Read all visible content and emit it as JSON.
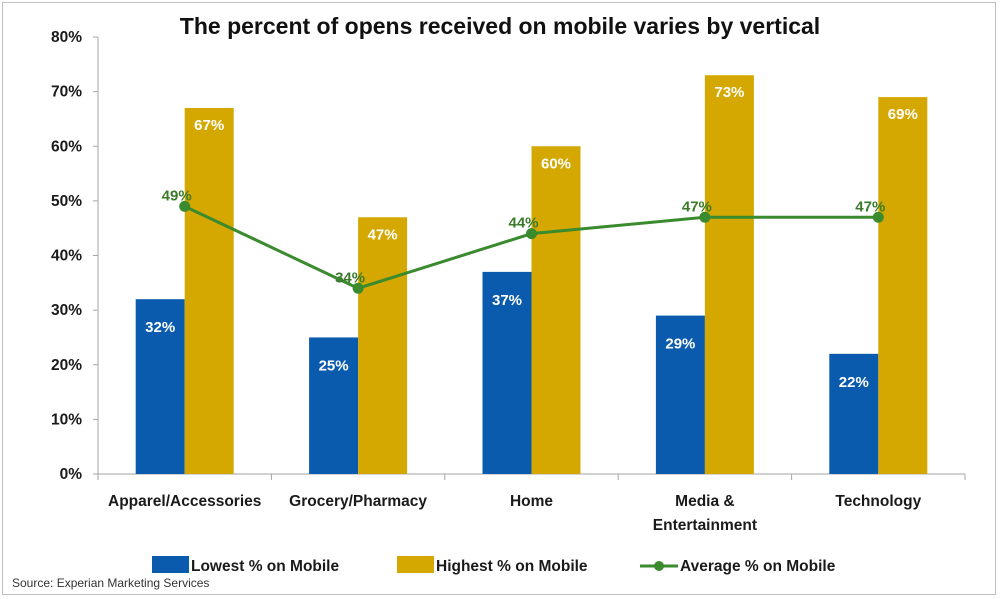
{
  "chart_data": {
    "type": "bar",
    "title": "The percent of opens received on mobile varies by vertical",
    "xlabel": "",
    "ylabel": "",
    "ylim": [
      0,
      80
    ],
    "yticks": [
      "0%",
      "10%",
      "20%",
      "30%",
      "40%",
      "50%",
      "60%",
      "70%",
      "80%"
    ],
    "ytick_values": [
      0,
      10,
      20,
      30,
      40,
      50,
      60,
      70,
      80
    ],
    "grid": false,
    "legend_position": "bottom",
    "categories": [
      [
        "Apparel/Accessories"
      ],
      [
        "Grocery/Pharmacy"
      ],
      [
        "Home"
      ],
      [
        "Media &",
        "Entertainment"
      ],
      [
        "Technology"
      ]
    ],
    "series": [
      {
        "name": "Lowest % on Mobile",
        "type": "bar",
        "color": "#0a5aad",
        "values": [
          32,
          25,
          37,
          29,
          22
        ],
        "labels": [
          "32%",
          "25%",
          "37%",
          "29%",
          "22%"
        ]
      },
      {
        "name": "Highest % on Mobile",
        "type": "bar",
        "color": "#d4a800",
        "values": [
          67,
          47,
          60,
          73,
          69
        ],
        "labels": [
          "67%",
          "47%",
          "60%",
          "73%",
          "69%"
        ]
      },
      {
        "name": "Average % on Mobile",
        "type": "line",
        "color": "#3a8a2e",
        "values": [
          49,
          34,
          44,
          47,
          47
        ],
        "labels": [
          "49%",
          "34%",
          "44%",
          "47%",
          "47%"
        ]
      }
    ],
    "source": "Source: Experian Marketing Services"
  }
}
